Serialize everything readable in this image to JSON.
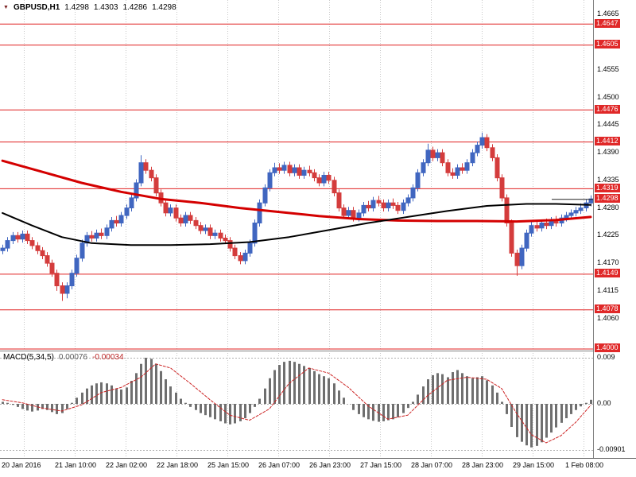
{
  "header": {
    "symbol": "GBPUSD,H1",
    "open": "1.4298",
    "high": "1.4303",
    "low": "1.4286",
    "close": "1.4298"
  },
  "macd_header": {
    "label": "MACD(5,34,5)",
    "value": "0.00076",
    "signal": "-0.00034"
  },
  "icons": {
    "chart_shift": "▼"
  },
  "colors": {
    "bull": "#4066c0",
    "bear": "#d43c3c",
    "ma_fast": "#000000",
    "ma_slow": "#d40000",
    "level": "#e02020",
    "label_bg": "#e02828",
    "hist": "#6f6f6f",
    "signal": "#cc2222"
  },
  "chart_data": {
    "type": "candlestick",
    "title": "GBPUSD,H1",
    "price_range": [
      1.3996,
      1.4694
    ],
    "bid": 1.4298,
    "levels": [
      1.4647,
      1.4605,
      1.4476,
      1.4412,
      1.4319,
      1.4149,
      1.4078,
      1.4
    ],
    "price_axis": {
      "black": [
        1.4665,
        1.4555,
        1.45,
        1.4445,
        1.439,
        1.4335,
        1.428,
        1.4225,
        1.417,
        1.4115,
        1.406
      ],
      "red": [
        1.4647,
        1.4605,
        1.4476,
        1.4412,
        1.4319,
        1.4298,
        1.4149,
        1.4078,
        1.4
      ]
    },
    "time_axis": [
      "20 Jan 2016",
      "21 Jan 10:00",
      "22 Jan 02:00",
      "22 Jan 18:00",
      "25 Jan 15:00",
      "26 Jan 07:00",
      "26 Jan 23:00",
      "27 Jan 15:00",
      "28 Jan 07:00",
      "28 Jan 23:00",
      "29 Jan 15:00",
      "1 Feb 08:00"
    ],
    "candles": [
      [
        1.4195,
        1.4207,
        1.4188,
        1.42
      ],
      [
        1.42,
        1.4222,
        1.4193,
        1.4215
      ],
      [
        1.4215,
        1.4232,
        1.4208,
        1.4225
      ],
      [
        1.4225,
        1.4232,
        1.4211,
        1.4218
      ],
      [
        1.4218,
        1.4235,
        1.4211,
        1.4228
      ],
      [
        1.4228,
        1.4235,
        1.4208,
        1.4215
      ],
      [
        1.4215,
        1.4222,
        1.4198,
        1.4205
      ],
      [
        1.4205,
        1.4212,
        1.4188,
        1.4195
      ],
      [
        1.4195,
        1.4202,
        1.4178,
        1.4185
      ],
      [
        1.4185,
        1.4192,
        1.4163,
        1.417
      ],
      [
        1.417,
        1.4177,
        1.4143,
        1.415
      ],
      [
        1.415,
        1.4157,
        1.4115,
        1.4125
      ],
      [
        1.4125,
        1.4132,
        1.4095,
        1.411
      ],
      [
        1.411,
        1.4132,
        1.41,
        1.4125
      ],
      [
        1.4125,
        1.4157,
        1.4118,
        1.415
      ],
      [
        1.415,
        1.4187,
        1.4143,
        1.418
      ],
      [
        1.418,
        1.4217,
        1.4173,
        1.421
      ],
      [
        1.421,
        1.4232,
        1.4203,
        1.4225
      ],
      [
        1.4225,
        1.4234,
        1.4213,
        1.422
      ],
      [
        1.422,
        1.4237,
        1.4213,
        1.423
      ],
      [
        1.423,
        1.4239,
        1.4218,
        1.4225
      ],
      [
        1.4225,
        1.4247,
        1.4218,
        1.424
      ],
      [
        1.424,
        1.4262,
        1.4233,
        1.4255
      ],
      [
        1.4255,
        1.4264,
        1.4243,
        1.425
      ],
      [
        1.425,
        1.4272,
        1.4243,
        1.4265
      ],
      [
        1.4265,
        1.4287,
        1.4258,
        1.428
      ],
      [
        1.428,
        1.4307,
        1.4273,
        1.43
      ],
      [
        1.43,
        1.4337,
        1.4293,
        1.433
      ],
      [
        1.433,
        1.4385,
        1.4323,
        1.437
      ],
      [
        1.437,
        1.4377,
        1.4348,
        1.4355
      ],
      [
        1.4355,
        1.4362,
        1.4333,
        1.434
      ],
      [
        1.434,
        1.4347,
        1.4303,
        1.431
      ],
      [
        1.431,
        1.4317,
        1.4283,
        1.429
      ],
      [
        1.429,
        1.4297,
        1.4263,
        1.427
      ],
      [
        1.427,
        1.4287,
        1.4263,
        1.428
      ],
      [
        1.428,
        1.4287,
        1.4253,
        1.426
      ],
      [
        1.426,
        1.4267,
        1.4243,
        1.425
      ],
      [
        1.425,
        1.4272,
        1.4243,
        1.4265
      ],
      [
        1.4265,
        1.4272,
        1.4248,
        1.4255
      ],
      [
        1.4255,
        1.4262,
        1.4238,
        1.4245
      ],
      [
        1.4245,
        1.4252,
        1.4228,
        1.4235
      ],
      [
        1.4235,
        1.4247,
        1.4228,
        1.424
      ],
      [
        1.424,
        1.4247,
        1.4218,
        1.4225
      ],
      [
        1.4225,
        1.4237,
        1.4218,
        1.423
      ],
      [
        1.423,
        1.4237,
        1.4213,
        1.422
      ],
      [
        1.422,
        1.4227,
        1.4208,
        1.4215
      ],
      [
        1.4215,
        1.4222,
        1.4193,
        1.42
      ],
      [
        1.42,
        1.4207,
        1.4178,
        1.4185
      ],
      [
        1.4185,
        1.4192,
        1.4168,
        1.4175
      ],
      [
        1.4175,
        1.4197,
        1.4168,
        1.419
      ],
      [
        1.419,
        1.4217,
        1.4183,
        1.421
      ],
      [
        1.421,
        1.4257,
        1.4203,
        1.425
      ],
      [
        1.425,
        1.4297,
        1.4243,
        1.429
      ],
      [
        1.429,
        1.4327,
        1.4283,
        1.432
      ],
      [
        1.432,
        1.4357,
        1.4313,
        1.435
      ],
      [
        1.435,
        1.437,
        1.4343,
        1.436
      ],
      [
        1.436,
        1.4369,
        1.4348,
        1.4355
      ],
      [
        1.4355,
        1.4372,
        1.4348,
        1.4365
      ],
      [
        1.4365,
        1.4372,
        1.4343,
        1.435
      ],
      [
        1.435,
        1.4367,
        1.4343,
        1.436
      ],
      [
        1.436,
        1.4367,
        1.4338,
        1.4345
      ],
      [
        1.4345,
        1.4362,
        1.4338,
        1.4355
      ],
      [
        1.4355,
        1.4364,
        1.4343,
        1.435
      ],
      [
        1.435,
        1.4357,
        1.4333,
        1.434
      ],
      [
        1.434,
        1.4347,
        1.4323,
        1.433
      ],
      [
        1.433,
        1.4352,
        1.4323,
        1.4345
      ],
      [
        1.4345,
        1.4352,
        1.4328,
        1.4335
      ],
      [
        1.4335,
        1.4342,
        1.4303,
        1.431
      ],
      [
        1.431,
        1.4317,
        1.4273,
        1.428
      ],
      [
        1.428,
        1.4287,
        1.4258,
        1.4265
      ],
      [
        1.4265,
        1.4282,
        1.4258,
        1.4275
      ],
      [
        1.4275,
        1.4282,
        1.4253,
        1.426
      ],
      [
        1.426,
        1.4277,
        1.4253,
        1.427
      ],
      [
        1.427,
        1.4292,
        1.4263,
        1.4285
      ],
      [
        1.4285,
        1.4294,
        1.4273,
        1.428
      ],
      [
        1.428,
        1.4302,
        1.4273,
        1.4295
      ],
      [
        1.4295,
        1.4304,
        1.4283,
        1.429
      ],
      [
        1.429,
        1.4297,
        1.4273,
        1.428
      ],
      [
        1.428,
        1.4297,
        1.4273,
        1.429
      ],
      [
        1.429,
        1.4299,
        1.4278,
        1.4285
      ],
      [
        1.4285,
        1.4292,
        1.4268,
        1.4275
      ],
      [
        1.4275,
        1.4297,
        1.4268,
        1.429
      ],
      [
        1.429,
        1.4307,
        1.4283,
        1.43
      ],
      [
        1.43,
        1.4327,
        1.4293,
        1.432
      ],
      [
        1.432,
        1.4357,
        1.4313,
        1.435
      ],
      [
        1.435,
        1.4377,
        1.4343,
        1.437
      ],
      [
        1.437,
        1.4408,
        1.4363,
        1.4395
      ],
      [
        1.4395,
        1.4402,
        1.4373,
        1.438
      ],
      [
        1.438,
        1.4397,
        1.4373,
        1.439
      ],
      [
        1.439,
        1.4397,
        1.4363,
        1.437
      ],
      [
        1.437,
        1.4377,
        1.4343,
        1.435
      ],
      [
        1.435,
        1.4359,
        1.4338,
        1.4345
      ],
      [
        1.4345,
        1.4367,
        1.4338,
        1.436
      ],
      [
        1.436,
        1.4369,
        1.4348,
        1.4355
      ],
      [
        1.4355,
        1.4377,
        1.4348,
        1.437
      ],
      [
        1.437,
        1.4397,
        1.4363,
        1.439
      ],
      [
        1.439,
        1.4412,
        1.4383,
        1.4405
      ],
      [
        1.4405,
        1.443,
        1.4398,
        1.442
      ],
      [
        1.442,
        1.4427,
        1.4393,
        1.44
      ],
      [
        1.44,
        1.4407,
        1.4373,
        1.438
      ],
      [
        1.438,
        1.4387,
        1.4333,
        1.434
      ],
      [
        1.434,
        1.4347,
        1.4293,
        1.43
      ],
      [
        1.43,
        1.4307,
        1.4243,
        1.425
      ],
      [
        1.425,
        1.4257,
        1.4183,
        1.419
      ],
      [
        1.419,
        1.4197,
        1.4145,
        1.4165
      ],
      [
        1.4165,
        1.4207,
        1.4158,
        1.42
      ],
      [
        1.42,
        1.4237,
        1.4193,
        1.423
      ],
      [
        1.423,
        1.4252,
        1.4223,
        1.4245
      ],
      [
        1.4245,
        1.4254,
        1.4233,
        1.424
      ],
      [
        1.424,
        1.4257,
        1.4233,
        1.425
      ],
      [
        1.425,
        1.4259,
        1.4238,
        1.4245
      ],
      [
        1.4245,
        1.4262,
        1.4238,
        1.4255
      ],
      [
        1.4255,
        1.4264,
        1.4243,
        1.425
      ],
      [
        1.425,
        1.4267,
        1.4243,
        1.426
      ],
      [
        1.426,
        1.4272,
        1.4253,
        1.4265
      ],
      [
        1.4265,
        1.4277,
        1.4258,
        1.427
      ],
      [
        1.427,
        1.4282,
        1.4263,
        1.4275
      ],
      [
        1.4275,
        1.4289,
        1.4268,
        1.428
      ],
      [
        1.428,
        1.4297,
        1.4273,
        1.429
      ],
      [
        1.429,
        1.4305,
        1.4283,
        1.4298
      ]
    ],
    "ma_fast_black": [
      [
        0,
        1.427
      ],
      [
        6,
        1.4245
      ],
      [
        12,
        1.4222
      ],
      [
        18,
        1.421
      ],
      [
        26,
        1.4206
      ],
      [
        34,
        1.4206
      ],
      [
        42,
        1.4208
      ],
      [
        50,
        1.4212
      ],
      [
        58,
        1.4222
      ],
      [
        66,
        1.4236
      ],
      [
        74,
        1.425
      ],
      [
        82,
        1.4262
      ],
      [
        90,
        1.4274
      ],
      [
        98,
        1.4284
      ],
      [
        106,
        1.4288
      ],
      [
        112,
        1.4288
      ],
      [
        119,
        1.4286
      ]
    ],
    "ma_slow_red": [
      [
        0,
        1.4374
      ],
      [
        8,
        1.4352
      ],
      [
        16,
        1.433
      ],
      [
        24,
        1.4312
      ],
      [
        32,
        1.4298
      ],
      [
        40,
        1.429
      ],
      [
        48,
        1.428
      ],
      [
        56,
        1.4272
      ],
      [
        64,
        1.4264
      ],
      [
        72,
        1.4258
      ],
      [
        80,
        1.4255
      ],
      [
        88,
        1.4254
      ],
      [
        96,
        1.4254
      ],
      [
        104,
        1.4253
      ],
      [
        112,
        1.4256
      ],
      [
        119,
        1.4262
      ]
    ],
    "macd": {
      "type": "macd-histogram",
      "params": "5,34,5",
      "last_value": 0.00076,
      "last_signal": -0.00034,
      "range": [
        -0.00901,
        0.009
      ],
      "axis": [
        {
          "label": "0.009",
          "value": 0.009
        },
        {
          "label": "0.00",
          "value": 0
        },
        {
          "label": "-0.00901",
          "value": -0.00901
        }
      ],
      "values": [
        0.0004,
        0.0002,
        -0.0002,
        -0.0006,
        -0.001,
        -0.0013,
        -0.0015,
        -0.0013,
        -0.001,
        -0.0012,
        -0.0016,
        -0.002,
        -0.0018,
        -0.001,
        0.0002,
        0.0012,
        0.0022,
        0.003,
        0.0036,
        0.004,
        0.0042,
        0.004,
        0.0036,
        0.003,
        0.0028,
        0.0032,
        0.0045,
        0.006,
        0.0078,
        0.009,
        0.0088,
        0.0078,
        0.0064,
        0.0048,
        0.0034,
        0.0022,
        0.001,
        0.0002,
        -0.0006,
        -0.0012,
        -0.0018,
        -0.0022,
        -0.0026,
        -0.003,
        -0.0034,
        -0.0038,
        -0.004,
        -0.0038,
        -0.0034,
        -0.0028,
        -0.0018,
        -0.0006,
        0.001,
        0.003,
        0.005,
        0.0066,
        0.0076,
        0.0082,
        0.0084,
        0.0082,
        0.0078,
        0.0074,
        0.007,
        0.0064,
        0.0058,
        0.0054,
        0.005,
        0.004,
        0.0026,
        0.0012,
        0.0,
        -0.0012,
        -0.002,
        -0.0026,
        -0.003,
        -0.0033,
        -0.0035,
        -0.0034,
        -0.0032,
        -0.003,
        -0.0026,
        -0.0018,
        -0.0008,
        0.0004,
        0.0018,
        0.0034,
        0.0048,
        0.0056,
        0.006,
        0.0058,
        0.0052,
        0.0062,
        0.0066,
        0.006,
        0.0054,
        0.005,
        0.0052,
        0.0054,
        0.0046,
        0.0036,
        0.0022,
        0.0004,
        -0.002,
        -0.0045,
        -0.0065,
        -0.0074,
        -0.0081,
        -0.0085,
        -0.0082,
        -0.0075,
        -0.0066,
        -0.0056,
        -0.0046,
        -0.0037,
        -0.0028,
        -0.002,
        -0.0012,
        -0.0005,
        0.0002,
        0.0008
      ],
      "signal_anchors": [
        [
          0,
          0.0008
        ],
        [
          4,
          0.0002
        ],
        [
          8,
          -0.0008
        ],
        [
          12,
          -0.0014
        ],
        [
          16,
          -0.0002
        ],
        [
          20,
          0.0022
        ],
        [
          24,
          0.0032
        ],
        [
          28,
          0.0052
        ],
        [
          31,
          0.0078
        ],
        [
          34,
          0.007
        ],
        [
          38,
          0.004
        ],
        [
          42,
          0.0008
        ],
        [
          46,
          -0.0022
        ],
        [
          50,
          -0.0032
        ],
        [
          54,
          -0.001
        ],
        [
          58,
          0.004
        ],
        [
          62,
          0.007
        ],
        [
          66,
          0.006
        ],
        [
          70,
          0.0032
        ],
        [
          74,
          -0.0004
        ],
        [
          78,
          -0.003
        ],
        [
          82,
          -0.0022
        ],
        [
          86,
          0.0016
        ],
        [
          90,
          0.0046
        ],
        [
          94,
          0.0052
        ],
        [
          98,
          0.0048
        ],
        [
          101,
          0.003
        ],
        [
          104,
          -0.0018
        ],
        [
          107,
          -0.006
        ],
        [
          110,
          -0.0076
        ],
        [
          113,
          -0.0062
        ],
        [
          116,
          -0.0036
        ],
        [
          119,
          -0.0003
        ]
      ]
    }
  }
}
